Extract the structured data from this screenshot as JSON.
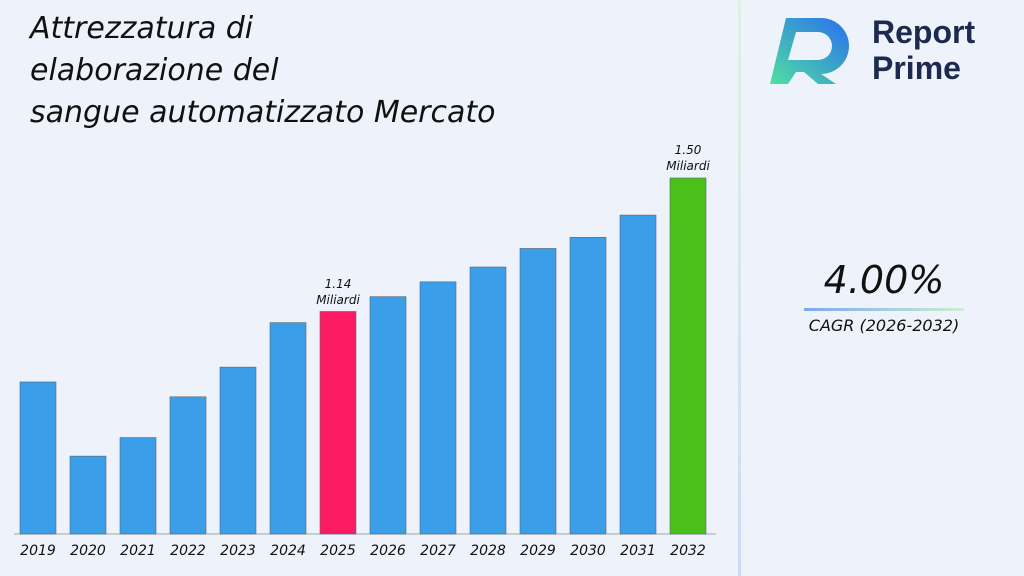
{
  "chart_data": {
    "type": "bar",
    "title": "Attrezzatura di\nelaborazione del\nsangue automatizzato Mercato",
    "categories": [
      "2019",
      "2020",
      "2021",
      "2022",
      "2023",
      "2024",
      "2025",
      "2026",
      "2027",
      "2028",
      "2029",
      "2030",
      "2031",
      "2032"
    ],
    "values": [
      0.95,
      0.75,
      0.8,
      0.91,
      0.99,
      1.11,
      1.14,
      1.18,
      1.22,
      1.26,
      1.31,
      1.34,
      1.4,
      1.5
    ],
    "value_labels": [
      null,
      null,
      null,
      null,
      null,
      null,
      "1.14 Miliardi",
      null,
      null,
      null,
      null,
      null,
      null,
      "1.50 Miliardi"
    ],
    "colors": [
      "#3a9fe8",
      "#3a9fe8",
      "#3a9fe8",
      "#3a9fe8",
      "#3a9fe8",
      "#3a9fe8",
      "#fc1a62",
      "#3a9fe8",
      "#3a9fe8",
      "#3a9fe8",
      "#3a9fe8",
      "#3a9fe8",
      "#3a9fe8",
      "#4cc01a"
    ],
    "ylim": [
      0.54,
      1.5
    ]
  },
  "brand": {
    "line1": "Report",
    "line2": "Prime"
  },
  "cagr": {
    "value": "4.00%",
    "label": "CAGR (2026-2032)"
  }
}
